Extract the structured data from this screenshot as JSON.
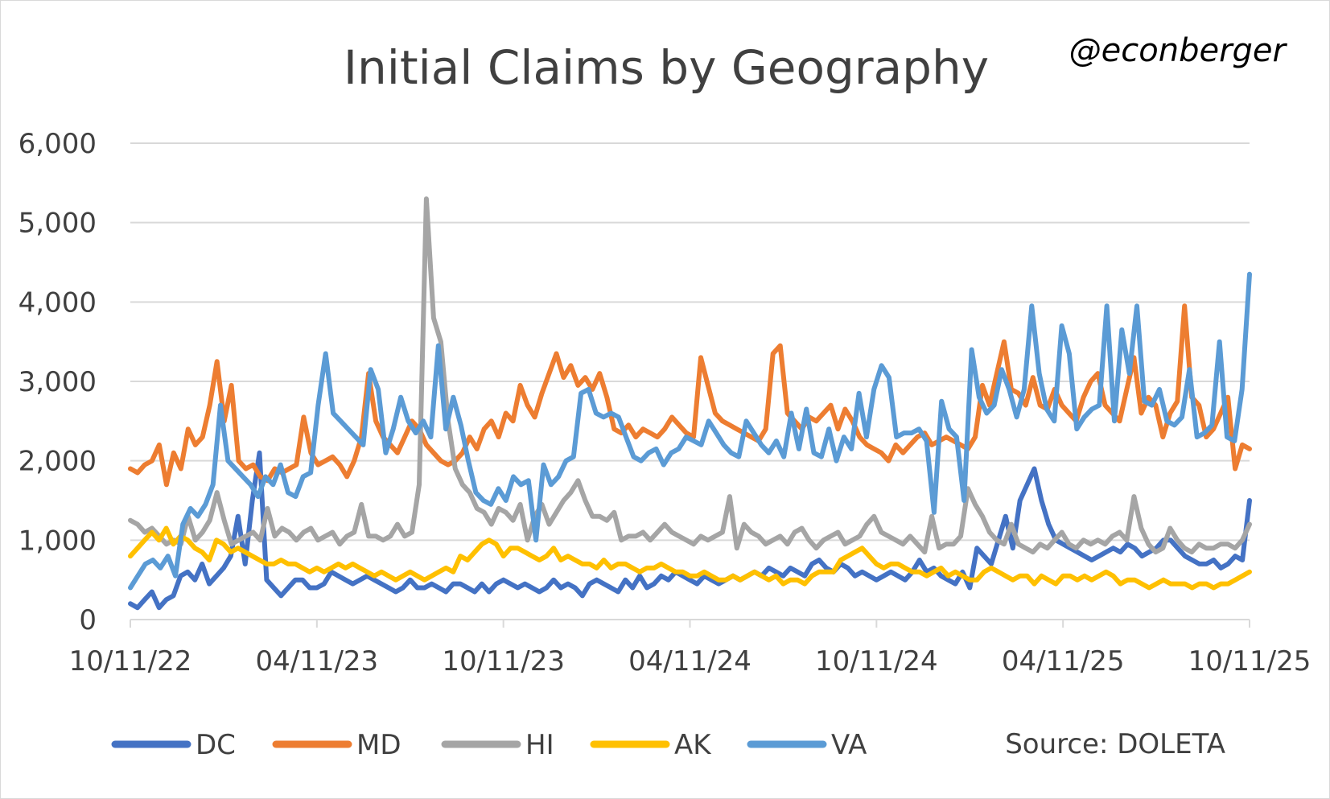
{
  "chart_data": {
    "type": "line",
    "title": "Initial Claims by Geography",
    "handle": "@econberger",
    "source": "Source: DOLETA",
    "xlabel": "",
    "ylabel": "",
    "ylim": [
      0,
      6000
    ],
    "yticks": [
      0,
      1000,
      2000,
      3000,
      4000,
      5000,
      6000
    ],
    "ytick_labels": [
      "0",
      "1,000",
      "2,000",
      "3,000",
      "4,000",
      "5,000",
      "6,000"
    ],
    "x_start_week": 0,
    "x_end_week": 156,
    "xticks": [
      0,
      26,
      52,
      78,
      104,
      130,
      156
    ],
    "xtick_labels": [
      "10/11/22",
      "04/11/23",
      "10/11/23",
      "04/11/24",
      "10/11/24",
      "04/11/25",
      "10/11/25"
    ],
    "grid": true,
    "legend_position": "bottom",
    "series": [
      {
        "name": "DC",
        "color": "#4472C4",
        "values": [
          200,
          150,
          250,
          350,
          150,
          250,
          300,
          550,
          600,
          500,
          700,
          450,
          550,
          650,
          800,
          1300,
          700,
          1500,
          2100,
          500,
          400,
          300,
          400,
          500,
          500,
          400,
          400,
          450,
          600,
          550,
          500,
          450,
          500,
          550,
          500,
          450,
          400,
          350,
          400,
          500,
          400,
          400,
          450,
          400,
          350,
          450,
          450,
          400,
          350,
          450,
          350,
          450,
          500,
          450,
          400,
          450,
          400,
          350,
          400,
          500,
          400,
          450,
          400,
          300,
          450,
          500,
          450,
          400,
          350,
          500,
          400,
          550,
          400,
          450,
          550,
          500,
          600,
          550,
          500,
          450,
          550,
          500,
          450,
          500,
          550,
          500,
          550,
          600,
          550,
          650,
          600,
          550,
          650,
          600,
          550,
          700,
          750,
          650,
          600,
          700,
          650,
          550,
          600,
          550,
          500,
          550,
          600,
          550,
          500,
          600,
          750,
          600,
          650,
          550,
          500,
          450,
          600,
          400,
          900,
          800,
          700,
          1000,
          1300,
          900,
          1500,
          1700,
          1900,
          1500,
          1200,
          1000,
          950,
          900,
          850,
          800,
          750,
          800,
          850,
          900,
          850,
          950,
          900,
          800,
          850,
          900,
          1000,
          1000,
          900,
          800,
          750,
          700,
          700,
          750,
          650,
          700,
          800,
          750,
          1500
        ]
      },
      {
        "name": "MD",
        "color": "#ED7D31",
        "values": [
          1900,
          1850,
          1950,
          2000,
          2200,
          1700,
          2100,
          1900,
          2400,
          2200,
          2300,
          2700,
          3250,
          2500,
          2950,
          2000,
          1900,
          1950,
          1800,
          1750,
          1900,
          1850,
          1900,
          1950,
          2550,
          2100,
          1950,
          2000,
          2050,
          1950,
          1800,
          2000,
          2300,
          3100,
          2500,
          2300,
          2200,
          2100,
          2300,
          2500,
          2400,
          2200,
          2100,
          2000,
          1950,
          2000,
          2100,
          2300,
          2150,
          2400,
          2500,
          2300,
          2600,
          2500,
          2950,
          2700,
          2550,
          2850,
          3100,
          3350,
          3050,
          3200,
          2950,
          3050,
          2900,
          3100,
          2800,
          2400,
          2350,
          2450,
          2300,
          2400,
          2350,
          2300,
          2400,
          2550,
          2450,
          2350,
          2300,
          3300,
          2950,
          2600,
          2500,
          2450,
          2400,
          2350,
          2300,
          2250,
          2400,
          3350,
          3450,
          2600,
          2500,
          2400,
          2550,
          2500,
          2600,
          2700,
          2400,
          2650,
          2500,
          2300,
          2200,
          2150,
          2100,
          2000,
          2200,
          2100,
          2200,
          2300,
          2350,
          2200,
          2250,
          2300,
          2250,
          2200,
          2150,
          2300,
          2950,
          2700,
          3100,
          3500,
          2900,
          2850,
          2700,
          3050,
          2700,
          2650,
          2900,
          2700,
          2600,
          2500,
          2800,
          3000,
          3100,
          2700,
          2600,
          2500,
          2900,
          3300,
          2600,
          2800,
          2700,
          2300,
          2600,
          2750,
          3950,
          2800,
          2700,
          2300,
          2400,
          2600,
          2800,
          1900,
          2200,
          2150
        ]
      },
      {
        "name": "HI",
        "color": "#A5A5A5",
        "values": [
          1250,
          1200,
          1100,
          1150,
          1050,
          950,
          1000,
          950,
          1300,
          1000,
          1100,
          1250,
          1600,
          1250,
          950,
          1000,
          1050,
          1100,
          1000,
          1400,
          1050,
          1150,
          1100,
          1000,
          1100,
          1150,
          1000,
          1050,
          1100,
          950,
          1050,
          1100,
          1450,
          1050,
          1050,
          1000,
          1050,
          1200,
          1050,
          1100,
          1700,
          5300,
          3800,
          3500,
          2500,
          1900,
          1700,
          1600,
          1400,
          1350,
          1200,
          1400,
          1350,
          1250,
          1450,
          1000,
          1300,
          1450,
          1200,
          1350,
          1500,
          1600,
          1750,
          1500,
          1300,
          1300,
          1250,
          1350,
          1000,
          1050,
          1050,
          1100,
          1000,
          1100,
          1200,
          1100,
          1050,
          1000,
          950,
          1050,
          1000,
          1050,
          1100,
          1550,
          900,
          1200,
          1100,
          1050,
          950,
          1000,
          1050,
          950,
          1100,
          1150,
          1000,
          900,
          1000,
          1050,
          1100,
          950,
          1000,
          1050,
          1200,
          1300,
          1100,
          1050,
          1000,
          950,
          1050,
          950,
          850,
          1300,
          900,
          950,
          950,
          1050,
          1650,
          1450,
          1300,
          1100,
          1000,
          950,
          1200,
          950,
          900,
          850,
          950,
          900,
          1000,
          1100,
          950,
          900,
          1000,
          950,
          1000,
          950,
          1050,
          1100,
          1000,
          1550,
          1150,
          950,
          850,
          900,
          1150,
          1000,
          900,
          850,
          950,
          900,
          900,
          950,
          950,
          900,
          1000,
          1200
        ]
      },
      {
        "name": "AK",
        "color": "#FFC000",
        "values": [
          800,
          900,
          1000,
          1100,
          1000,
          1150,
          950,
          1050,
          1000,
          900,
          850,
          750,
          1000,
          950,
          850,
          900,
          850,
          800,
          750,
          700,
          700,
          750,
          700,
          700,
          650,
          600,
          650,
          600,
          650,
          700,
          650,
          700,
          650,
          600,
          550,
          600,
          550,
          500,
          550,
          600,
          550,
          500,
          550,
          600,
          650,
          600,
          800,
          750,
          850,
          950,
          1000,
          950,
          800,
          900,
          900,
          850,
          800,
          750,
          800,
          900,
          750,
          800,
          750,
          700,
          700,
          650,
          750,
          650,
          700,
          700,
          650,
          600,
          650,
          650,
          700,
          650,
          600,
          600,
          550,
          550,
          600,
          550,
          500,
          500,
          550,
          500,
          550,
          600,
          550,
          500,
          550,
          450,
          500,
          500,
          450,
          550,
          600,
          600,
          600,
          750,
          800,
          850,
          900,
          800,
          700,
          650,
          700,
          700,
          650,
          600,
          600,
          550,
          600,
          650,
          550,
          600,
          550,
          500,
          500,
          600,
          650,
          600,
          550,
          500,
          550,
          550,
          450,
          550,
          500,
          450,
          550,
          550,
          500,
          550,
          500,
          550,
          600,
          550,
          450,
          500,
          500,
          450,
          400,
          450,
          500,
          450,
          450,
          450,
          400,
          450,
          450,
          400,
          450,
          450,
          500,
          550,
          600
        ]
      },
      {
        "name": "VA",
        "color": "#5B9BD5",
        "values": [
          400,
          550,
          700,
          750,
          650,
          800,
          550,
          1200,
          1400,
          1300,
          1450,
          1700,
          2700,
          2000,
          1900,
          1800,
          1700,
          1550,
          1800,
          1700,
          1950,
          1600,
          1550,
          1800,
          1850,
          2700,
          3350,
          2600,
          2500,
          2400,
          2300,
          2200,
          3150,
          2900,
          2100,
          2400,
          2800,
          2500,
          2350,
          2500,
          2300,
          3450,
          2400,
          2800,
          2450,
          2000,
          1600,
          1500,
          1450,
          1650,
          1500,
          1800,
          1700,
          1750,
          1000,
          1950,
          1700,
          1800,
          2000,
          2050,
          2850,
          2900,
          2600,
          2550,
          2600,
          2550,
          2300,
          2050,
          2000,
          2100,
          2150,
          1950,
          2100,
          2150,
          2300,
          2250,
          2200,
          2500,
          2350,
          2200,
          2100,
          2050,
          2500,
          2350,
          2200,
          2100,
          2250,
          2050,
          2600,
          2150,
          2650,
          2100,
          2050,
          2400,
          2000,
          2300,
          2150,
          2850,
          2300,
          2900,
          3200,
          3050,
          2300,
          2350,
          2350,
          2400,
          2250,
          1350,
          2750,
          2400,
          2300,
          1500,
          3400,
          2800,
          2600,
          2700,
          3150,
          2900,
          2550,
          2900,
          3950,
          3100,
          2650,
          2500,
          3700,
          3350,
          2400,
          2550,
          2650,
          2700,
          3950,
          2500,
          3650,
          3100,
          3950,
          2750,
          2700,
          2900,
          2500,
          2450,
          2550,
          3150,
          2300,
          2350,
          2450,
          3500,
          2300,
          2250,
          2900,
          4350
        ]
      }
    ]
  }
}
